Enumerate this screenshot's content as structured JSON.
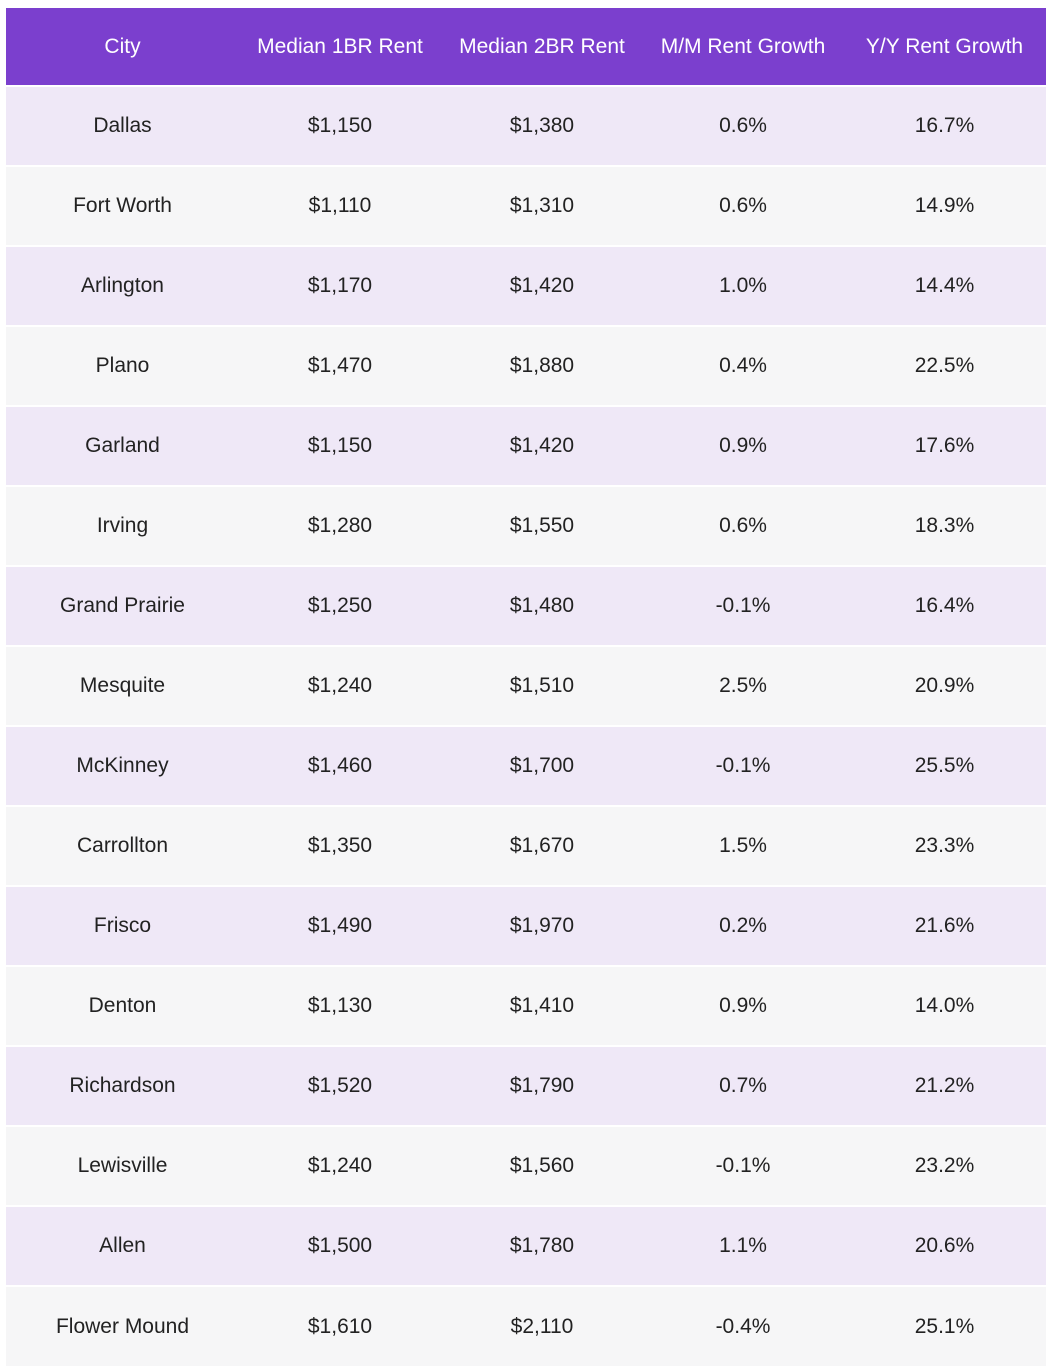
{
  "table": {
    "headers": [
      "City",
      "Median 1BR Rent",
      "Median 2BR Rent",
      "M/M Rent Growth",
      "Y/Y Rent Growth"
    ],
    "rows": [
      [
        "Dallas",
        "$1,150",
        "$1,380",
        "0.6%",
        "16.7%"
      ],
      [
        "Fort Worth",
        "$1,110",
        "$1,310",
        "0.6%",
        "14.9%"
      ],
      [
        "Arlington",
        "$1,170",
        "$1,420",
        "1.0%",
        "14.4%"
      ],
      [
        "Plano",
        "$1,470",
        "$1,880",
        "0.4%",
        "22.5%"
      ],
      [
        "Garland",
        "$1,150",
        "$1,420",
        "0.9%",
        "17.6%"
      ],
      [
        "Irving",
        "$1,280",
        "$1,550",
        "0.6%",
        "18.3%"
      ],
      [
        "Grand Prairie",
        "$1,250",
        "$1,480",
        "-0.1%",
        "16.4%"
      ],
      [
        "Mesquite",
        "$1,240",
        "$1,510",
        "2.5%",
        "20.9%"
      ],
      [
        "McKinney",
        "$1,460",
        "$1,700",
        "-0.1%",
        "25.5%"
      ],
      [
        "Carrollton",
        "$1,350",
        "$1,670",
        "1.5%",
        "23.3%"
      ],
      [
        "Frisco",
        "$1,490",
        "$1,970",
        "0.2%",
        "21.6%"
      ],
      [
        "Denton",
        "$1,130",
        "$1,410",
        "0.9%",
        "14.0%"
      ],
      [
        "Richardson",
        "$1,520",
        "$1,790",
        "0.7%",
        "21.2%"
      ],
      [
        "Lewisville",
        "$1,240",
        "$1,560",
        "-0.1%",
        "23.2%"
      ],
      [
        "Allen",
        "$1,500",
        "$1,780",
        "1.1%",
        "20.6%"
      ],
      [
        "Flower Mound",
        "$1,610",
        "$2,110",
        "-0.4%",
        "25.1%"
      ]
    ]
  },
  "colors": {
    "header_bg": "#7b3fce",
    "row_odd": "#efe8f7",
    "row_even": "#f6f6f7"
  }
}
